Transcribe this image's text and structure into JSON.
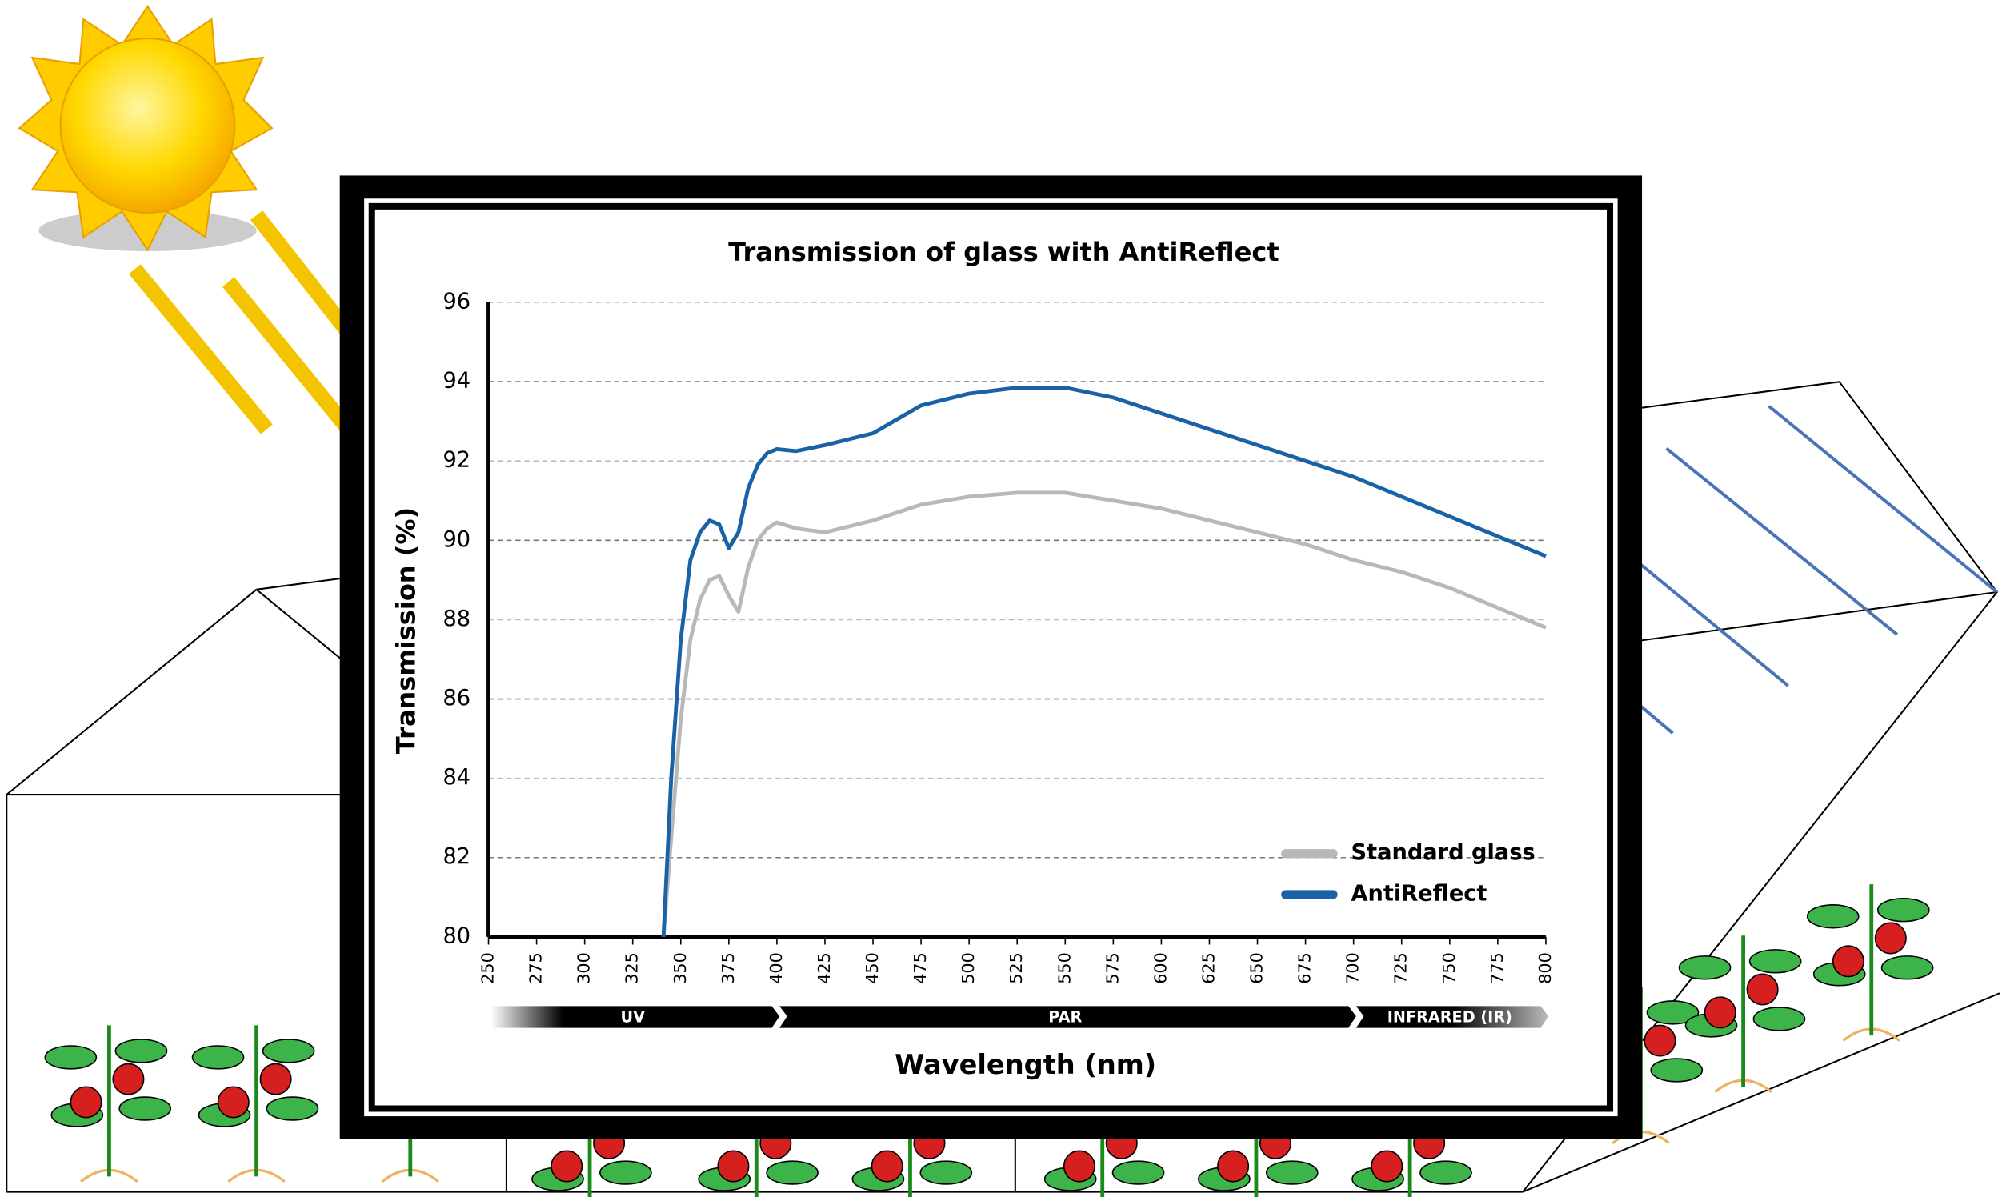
{
  "chart_data": {
    "type": "line",
    "title": "Transmission of glass with AntiReflect",
    "x_label": "Wavelength (nm)",
    "y_label": "Transmission (%)",
    "x": [
      341,
      345,
      350,
      355,
      360,
      365,
      370,
      375,
      380,
      385,
      390,
      395,
      400,
      410,
      425,
      450,
      475,
      500,
      525,
      550,
      575,
      600,
      625,
      650,
      675,
      700,
      725,
      750,
      775,
      800
    ],
    "series": [
      {
        "name": "Standard glass",
        "color": "#b8b8b8",
        "values": [
          80,
          82.5,
          85.5,
          87.5,
          88.5,
          89.0,
          89.1,
          88.6,
          88.2,
          89.3,
          90.0,
          90.3,
          90.45,
          90.3,
          90.2,
          90.5,
          90.9,
          91.1,
          91.2,
          91.2,
          91.0,
          90.8,
          90.5,
          90.2,
          89.9,
          89.5,
          89.2,
          88.8,
          88.3,
          87.8
        ]
      },
      {
        "name": "AntiReflect",
        "color": "#1a62a6",
        "values": [
          80,
          84,
          87.5,
          89.5,
          90.2,
          90.5,
          90.4,
          89.8,
          90.2,
          91.3,
          91.9,
          92.2,
          92.3,
          92.25,
          92.4,
          92.7,
          93.4,
          93.7,
          93.85,
          93.85,
          93.6,
          93.2,
          92.8,
          92.4,
          92.0,
          91.6,
          91.1,
          90.6,
          90.1,
          89.6
        ]
      }
    ],
    "xlim": [
      250,
      800
    ],
    "xticks": [
      250,
      275,
      300,
      325,
      350,
      375,
      400,
      425,
      450,
      475,
      500,
      525,
      550,
      575,
      600,
      625,
      650,
      675,
      700,
      725,
      750,
      775,
      800
    ],
    "ylim": [
      80,
      96
    ],
    "yticks": [
      80,
      82,
      84,
      86,
      88,
      90,
      92,
      94,
      96
    ],
    "grid": true,
    "legend": "lower right",
    "bands": [
      {
        "label": "UV",
        "range": [
          250,
          400
        ]
      },
      {
        "label": "PAR",
        "range": [
          400,
          700
        ]
      },
      {
        "label": "INFRARED (IR)",
        "range": [
          700,
          800
        ]
      }
    ]
  }
}
